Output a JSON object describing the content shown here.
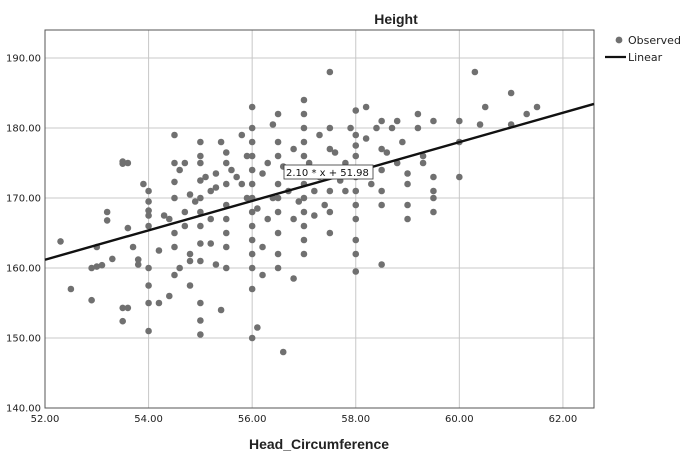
{
  "chart_data": {
    "type": "scatter",
    "title": "Height",
    "xlabel": "Head_Circumference",
    "ylabel": "",
    "xlim": [
      52,
      62.6
    ],
    "ylim": [
      140,
      194
    ],
    "x_ticks": [
      "52.00",
      "54.00",
      "56.00",
      "58.00",
      "60.00",
      "62.00"
    ],
    "y_ticks": [
      "140.00",
      "150.00",
      "160.00",
      "170.00",
      "180.00",
      "190.00"
    ],
    "grid": true,
    "legend": {
      "placement": "top-right",
      "entries": [
        {
          "label": "Observed",
          "marker": "circle"
        },
        {
          "label": "Linear",
          "marker": "line"
        }
      ]
    },
    "fit": {
      "slope": 2.1,
      "intercept": 51.98,
      "equation_label": "2.10 * x + 51.98"
    },
    "colors": {
      "points": "#707070",
      "fit_line": "#111111",
      "grid": "#c8c8c8",
      "axis": "#555555"
    },
    "series": [
      {
        "name": "Observed",
        "points": [
          [
            52.3,
            163.8
          ],
          [
            52.5,
            157.0
          ],
          [
            52.9,
            155.4
          ],
          [
            52.9,
            160.0
          ],
          [
            53.0,
            160.2
          ],
          [
            53.0,
            163.0
          ],
          [
            53.1,
            160.4
          ],
          [
            53.2,
            168.0
          ],
          [
            53.2,
            166.8
          ],
          [
            53.3,
            161.3
          ],
          [
            53.5,
            175.2
          ],
          [
            53.5,
            174.9
          ],
          [
            53.5,
            152.4
          ],
          [
            53.5,
            154.3
          ],
          [
            53.6,
            154.3
          ],
          [
            53.6,
            175.0
          ],
          [
            53.6,
            165.7
          ],
          [
            53.7,
            163.0
          ],
          [
            53.8,
            160.5
          ],
          [
            53.8,
            161.2
          ],
          [
            53.9,
            172.0
          ],
          [
            54.0,
            155.0
          ],
          [
            54.0,
            151.0
          ],
          [
            54.0,
            160.0
          ],
          [
            54.0,
            166.0
          ],
          [
            54.0,
            167.5
          ],
          [
            54.0,
            168.2
          ],
          [
            54.0,
            169.5
          ],
          [
            54.0,
            171.0
          ],
          [
            54.0,
            157.5
          ],
          [
            54.2,
            155.0
          ],
          [
            54.2,
            162.5
          ],
          [
            54.3,
            167.5
          ],
          [
            54.4,
            167.0
          ],
          [
            54.4,
            156.0
          ],
          [
            54.5,
            179.0
          ],
          [
            54.5,
            175.0
          ],
          [
            54.5,
            170.0
          ],
          [
            54.5,
            172.3
          ],
          [
            54.5,
            163.0
          ],
          [
            54.5,
            165.0
          ],
          [
            54.5,
            159.0
          ],
          [
            54.6,
            160.0
          ],
          [
            54.6,
            174.0
          ],
          [
            54.7,
            166.0
          ],
          [
            54.7,
            168.0
          ],
          [
            54.7,
            175.0
          ],
          [
            54.8,
            161.0
          ],
          [
            54.8,
            162.0
          ],
          [
            54.8,
            157.5
          ],
          [
            54.8,
            170.5
          ],
          [
            54.9,
            169.5
          ],
          [
            55.0,
            176.0
          ],
          [
            55.0,
            175.0
          ],
          [
            55.0,
            172.5
          ],
          [
            55.0,
            170.0
          ],
          [
            55.0,
            168.0
          ],
          [
            55.0,
            166.0
          ],
          [
            55.0,
            163.5
          ],
          [
            55.0,
            161.0
          ],
          [
            55.0,
            155.0
          ],
          [
            55.0,
            152.5
          ],
          [
            55.0,
            150.5
          ],
          [
            55.0,
            178.0
          ],
          [
            55.1,
            173.0
          ],
          [
            55.2,
            163.5
          ],
          [
            55.2,
            167.0
          ],
          [
            55.2,
            171.0
          ],
          [
            55.3,
            171.5
          ],
          [
            55.3,
            173.5
          ],
          [
            55.3,
            160.5
          ],
          [
            55.4,
            178.0
          ],
          [
            55.4,
            154.0
          ],
          [
            55.5,
            176.5
          ],
          [
            55.5,
            175.0
          ],
          [
            55.5,
            172.0
          ],
          [
            55.5,
            169.0
          ],
          [
            55.5,
            167.0
          ],
          [
            55.5,
            165.0
          ],
          [
            55.5,
            163.0
          ],
          [
            55.5,
            160.0
          ],
          [
            55.6,
            174.0
          ],
          [
            55.7,
            173.0
          ],
          [
            55.8,
            172.0
          ],
          [
            55.8,
            179.0
          ],
          [
            55.9,
            176.0
          ],
          [
            55.9,
            170.0
          ],
          [
            56.0,
            183.0
          ],
          [
            56.0,
            180.0
          ],
          [
            56.0,
            178.0
          ],
          [
            56.0,
            176.0
          ],
          [
            56.0,
            174.0
          ],
          [
            56.0,
            172.0
          ],
          [
            56.0,
            170.0
          ],
          [
            56.0,
            168.0
          ],
          [
            56.0,
            166.0
          ],
          [
            56.0,
            164.0
          ],
          [
            56.0,
            162.0
          ],
          [
            56.0,
            160.0
          ],
          [
            56.0,
            157.0
          ],
          [
            56.0,
            150.0
          ],
          [
            56.1,
            151.5
          ],
          [
            56.1,
            168.5
          ],
          [
            56.2,
            173.5
          ],
          [
            56.2,
            163.0
          ],
          [
            56.2,
            159.0
          ],
          [
            56.3,
            175.0
          ],
          [
            56.3,
            167.0
          ],
          [
            56.4,
            170.0
          ],
          [
            56.4,
            180.5
          ],
          [
            56.5,
            182.0
          ],
          [
            56.5,
            178.0
          ],
          [
            56.5,
            176.0
          ],
          [
            56.5,
            172.0
          ],
          [
            56.5,
            170.0
          ],
          [
            56.5,
            168.0
          ],
          [
            56.5,
            165.0
          ],
          [
            56.5,
            162.0
          ],
          [
            56.5,
            160.0
          ],
          [
            56.6,
            148.0
          ],
          [
            56.6,
            174.5
          ],
          [
            56.7,
            171.0
          ],
          [
            56.8,
            167.0
          ],
          [
            56.8,
            177.0
          ],
          [
            56.8,
            158.5
          ],
          [
            56.9,
            169.5
          ],
          [
            57.0,
            184.0
          ],
          [
            57.0,
            182.0
          ],
          [
            57.0,
            180.0
          ],
          [
            57.0,
            178.0
          ],
          [
            57.0,
            176.0
          ],
          [
            57.0,
            174.0
          ],
          [
            57.0,
            172.0
          ],
          [
            57.0,
            170.0
          ],
          [
            57.0,
            168.0
          ],
          [
            57.0,
            166.0
          ],
          [
            57.0,
            164.0
          ],
          [
            57.0,
            162.0
          ],
          [
            57.1,
            175.0
          ],
          [
            57.2,
            171.0
          ],
          [
            57.2,
            167.5
          ],
          [
            57.3,
            179.0
          ],
          [
            57.3,
            173.0
          ],
          [
            57.4,
            169.0
          ],
          [
            57.5,
            188.0
          ],
          [
            57.5,
            180.0
          ],
          [
            57.5,
            177.0
          ],
          [
            57.5,
            174.0
          ],
          [
            57.5,
            171.0
          ],
          [
            57.5,
            168.0
          ],
          [
            57.5,
            165.0
          ],
          [
            57.6,
            176.5
          ],
          [
            57.7,
            172.5
          ],
          [
            57.8,
            175.0
          ],
          [
            57.8,
            171.0
          ],
          [
            57.9,
            180.0
          ],
          [
            58.0,
            182.5
          ],
          [
            58.0,
            179.0
          ],
          [
            58.0,
            177.5
          ],
          [
            58.0,
            176.0
          ],
          [
            58.0,
            173.0
          ],
          [
            58.0,
            171.0
          ],
          [
            58.0,
            169.0
          ],
          [
            58.0,
            167.0
          ],
          [
            58.0,
            164.0
          ],
          [
            58.0,
            162.0
          ],
          [
            58.0,
            159.5
          ],
          [
            58.1,
            174.0
          ],
          [
            58.2,
            178.5
          ],
          [
            58.2,
            183.0
          ],
          [
            58.3,
            172.0
          ],
          [
            58.4,
            180.0
          ],
          [
            58.5,
            181.0
          ],
          [
            58.5,
            177.0
          ],
          [
            58.5,
            174.0
          ],
          [
            58.5,
            171.0
          ],
          [
            58.5,
            169.0
          ],
          [
            58.5,
            160.5
          ],
          [
            58.6,
            176.5
          ],
          [
            58.7,
            180.0
          ],
          [
            58.8,
            175.0
          ],
          [
            58.8,
            181.0
          ],
          [
            58.9,
            178.0
          ],
          [
            59.0,
            172.0
          ],
          [
            59.0,
            173.5
          ],
          [
            59.0,
            167.0
          ],
          [
            59.0,
            169.0
          ],
          [
            59.2,
            182.0
          ],
          [
            59.2,
            180.0
          ],
          [
            59.3,
            176.0
          ],
          [
            59.3,
            175.0
          ],
          [
            59.5,
            173.0
          ],
          [
            59.5,
            171.0
          ],
          [
            59.5,
            168.0
          ],
          [
            59.5,
            170.0
          ],
          [
            59.5,
            181.0
          ],
          [
            60.0,
            181.0
          ],
          [
            60.0,
            178.0
          ],
          [
            60.0,
            173.0
          ],
          [
            60.3,
            188.0
          ],
          [
            60.4,
            180.5
          ],
          [
            60.5,
            183.0
          ],
          [
            61.0,
            185.0
          ],
          [
            61.0,
            180.5
          ],
          [
            61.3,
            182.0
          ],
          [
            61.5,
            183.0
          ]
        ]
      }
    ]
  }
}
